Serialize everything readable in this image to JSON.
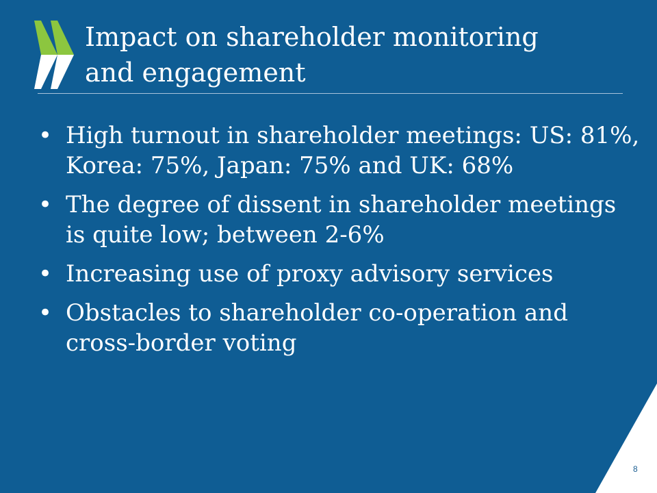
{
  "slide": {
    "title_lines": [
      "Impact on shareholder monitoring",
      "and engagement"
    ],
    "bullets": [
      "High turnout in shareholder meetings: US: 81%, Korea: 75%, Japan: 75% and UK: 68%",
      "The degree of dissent in shareholder meetings is quite low; between 2-6%",
      "Increasing use of proxy advisory services",
      "Obstacles to shareholder co-operation and cross-border voting"
    ],
    "page_number": "8",
    "bullet_glyph": "•"
  },
  "colors": {
    "background": "#0f5d94",
    "accent_green": "#8cc63f",
    "text": "#ffffff",
    "corner": "#ffffff"
  },
  "icons": {
    "logo": "oecd-chevrons-logo"
  }
}
